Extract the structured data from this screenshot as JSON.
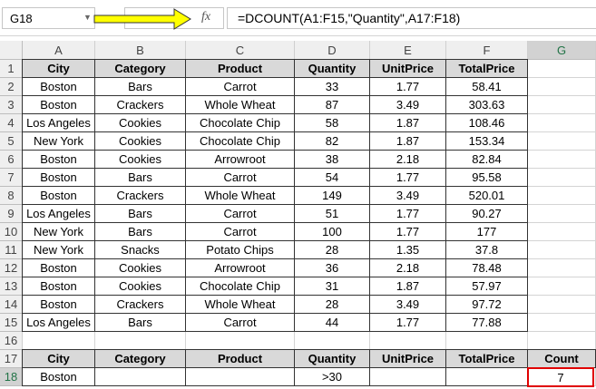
{
  "name_box": "G18",
  "formula": "=DCOUNT(A1:F15,\"Quantity\",A17:F18)",
  "column_letters": [
    "A",
    "B",
    "C",
    "D",
    "E",
    "F",
    "G"
  ],
  "row_numbers": [
    1,
    2,
    3,
    4,
    5,
    6,
    7,
    8,
    9,
    10,
    11,
    12,
    13,
    14,
    15,
    16,
    17,
    18
  ],
  "table": {
    "header": [
      "City",
      "Category",
      "Product",
      "Quantity",
      "UnitPrice",
      "TotalPrice"
    ],
    "rows": [
      [
        "Boston",
        "Bars",
        "Carrot",
        33,
        1.77,
        58.41
      ],
      [
        "Boston",
        "Crackers",
        "Whole Wheat",
        87,
        3.49,
        303.63
      ],
      [
        "Los Angeles",
        "Cookies",
        "Chocolate Chip",
        58,
        1.87,
        108.46
      ],
      [
        "New York",
        "Cookies",
        "Chocolate Chip",
        82,
        1.87,
        153.34
      ],
      [
        "Boston",
        "Cookies",
        "Arrowroot",
        38,
        2.18,
        82.84
      ],
      [
        "Boston",
        "Bars",
        "Carrot",
        54,
        1.77,
        95.58
      ],
      [
        "Boston",
        "Crackers",
        "Whole Wheat",
        149,
        3.49,
        520.01
      ],
      [
        "Los Angeles",
        "Bars",
        "Carrot",
        51,
        1.77,
        90.27
      ],
      [
        "New York",
        "Bars",
        "Carrot",
        100,
        1.77,
        177
      ],
      [
        "New York",
        "Snacks",
        "Potato Chips",
        28,
        1.35,
        37.8
      ],
      [
        "Boston",
        "Cookies",
        "Arrowroot",
        36,
        2.18,
        78.48
      ],
      [
        "Boston",
        "Cookies",
        "Chocolate Chip",
        31,
        1.87,
        57.97
      ],
      [
        "Boston",
        "Crackers",
        "Whole Wheat",
        28,
        3.49,
        97.72
      ],
      [
        "Los Angeles",
        "Bars",
        "Carrot",
        44,
        1.77,
        77.88
      ]
    ]
  },
  "criteria": {
    "header": [
      "City",
      "Category",
      "Product",
      "Quantity",
      "UnitPrice",
      "TotalPrice",
      "Count"
    ],
    "city": "Boston",
    "quantity": ">30",
    "count": 7
  }
}
